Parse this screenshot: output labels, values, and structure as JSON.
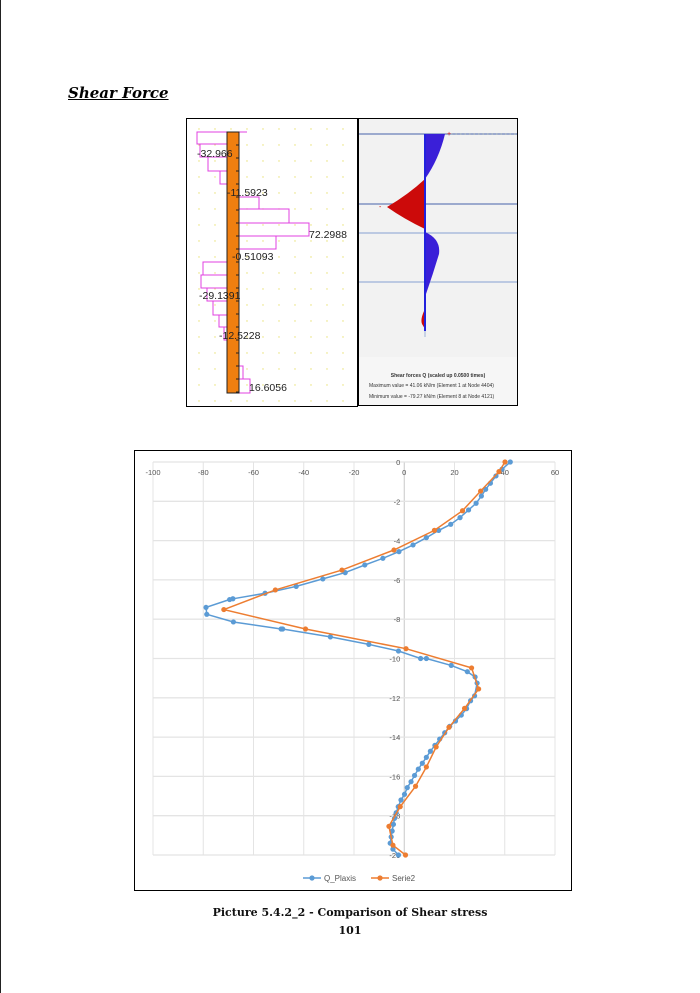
{
  "section_title": "Shear Force",
  "left_figure": {
    "labels": [
      "-32.966",
      "-11.5923",
      "72.2988",
      "-0.51093",
      "-29.1391",
      "-12.5228",
      "16.6056"
    ],
    "colors": {
      "pile": "#f07f10",
      "diagram": "#e040e0",
      "grid_dots": "#e8e070"
    }
  },
  "right_figure": {
    "legend_title": "Shear forces Q (scaled up 0.0500 times)",
    "max_text": "Maximum value = 41.06 kN/m (Element 1 at Node 4404)",
    "min_text": "Minimum value = -79.27 kN/m (Element 8 at Node 4121)",
    "colors": {
      "positive": "#3a1fd8",
      "negative": "#cc0a0a"
    }
  },
  "chart_data": {
    "type": "line",
    "xlim": [
      -100,
      60
    ],
    "ylim": [
      -20,
      0
    ],
    "xticks": [
      -100,
      -80,
      -60,
      -40,
      -20,
      0,
      20,
      40,
      60
    ],
    "yticks": [
      0,
      -2,
      -4,
      -6,
      -8,
      -10,
      -12,
      -14,
      -16,
      -18,
      -20
    ],
    "grid": true,
    "legend_position": "bottom",
    "series": [
      {
        "name": "Q_Plaxis",
        "color": "#5b9bd5",
        "points": [
          [
            42.2,
            0
          ],
          [
            38.9,
            -0.37
          ],
          [
            36.5,
            -0.71
          ],
          [
            34.3,
            -1.08
          ],
          [
            32.4,
            -1.39
          ],
          [
            30.7,
            -1.73
          ],
          [
            28.6,
            -2.1
          ],
          [
            25.6,
            -2.44
          ],
          [
            22.2,
            -2.83
          ],
          [
            18.5,
            -3.17
          ],
          [
            13.7,
            -3.48
          ],
          [
            8.8,
            -3.85
          ],
          [
            3.5,
            -4.22
          ],
          [
            -2.1,
            -4.56
          ],
          [
            -8.5,
            -4.9
          ],
          [
            -15.7,
            -5.24
          ],
          [
            -23.5,
            -5.63
          ],
          [
            -32.4,
            -5.95
          ],
          [
            -43,
            -6.33
          ],
          [
            -55.4,
            -6.68
          ],
          [
            -68.2,
            -6.96
          ],
          [
            -69.5,
            -7.0
          ],
          [
            -78.9,
            -7.4
          ],
          [
            -78.6,
            -7.75
          ],
          [
            -68,
            -8.14
          ],
          [
            -49,
            -8.5
          ],
          [
            -48.4,
            -8.5
          ],
          [
            -29.4,
            -8.9
          ],
          [
            -14.1,
            -9.28
          ],
          [
            -2.3,
            -9.62
          ],
          [
            6.5,
            -10.0
          ],
          [
            8.8,
            -10.0
          ],
          [
            18.7,
            -10.35
          ],
          [
            25.1,
            -10.67
          ],
          [
            28.2,
            -10.94
          ],
          [
            29,
            -11.25
          ],
          [
            28,
            -11.9
          ],
          [
            26.4,
            -12.15
          ],
          [
            24.8,
            -12.55
          ],
          [
            22.7,
            -12.88
          ],
          [
            20.4,
            -13.18
          ],
          [
            18.1,
            -13.45
          ],
          [
            16.1,
            -13.78
          ],
          [
            14.1,
            -14.1
          ],
          [
            12.2,
            -14.42
          ],
          [
            10.4,
            -14.72
          ],
          [
            8.8,
            -15.03
          ],
          [
            7.2,
            -15.33
          ],
          [
            5.6,
            -15.63
          ],
          [
            4.1,
            -15.95
          ],
          [
            2.7,
            -16.27
          ],
          [
            1.2,
            -16.57
          ],
          [
            0.1,
            -16.91
          ],
          [
            -1.3,
            -17.2
          ],
          [
            -2.4,
            -17.54
          ],
          [
            -3.2,
            -17.85
          ],
          [
            -3.9,
            -18.14
          ],
          [
            -4.3,
            -18.44
          ],
          [
            -4.8,
            -18.78
          ],
          [
            -5.2,
            -19.08
          ],
          [
            -5.6,
            -19.4
          ],
          [
            -4.5,
            -19.7
          ],
          [
            -2.3,
            -20
          ]
        ]
      },
      {
        "name": "Serie2",
        "color": "#ed7d31",
        "points": [
          [
            40.1,
            0
          ],
          [
            37.7,
            -0.49
          ],
          [
            30.4,
            -1.48
          ],
          [
            23.2,
            -2.48
          ],
          [
            12,
            -3.48
          ],
          [
            -4.1,
            -4.48
          ],
          [
            -24.8,
            -5.5
          ],
          [
            -51.3,
            -6.51
          ],
          [
            -71.8,
            -7.51
          ],
          [
            -39.3,
            -8.5
          ],
          [
            0.7,
            -9.5
          ],
          [
            26.8,
            -10.48
          ],
          [
            29.6,
            -11.55
          ],
          [
            24,
            -12.54
          ],
          [
            17.8,
            -13.5
          ],
          [
            12.7,
            -14.5
          ],
          [
            8.8,
            -15.52
          ],
          [
            4.5,
            -16.5
          ],
          [
            -1.6,
            -17.54
          ],
          [
            -6.1,
            -18.54
          ],
          [
            -4.5,
            -19.5
          ],
          [
            0.5,
            -20
          ]
        ]
      }
    ]
  },
  "caption": "Picture 5.4.2_2 - Comparison of Shear stress",
  "page_number": "101"
}
